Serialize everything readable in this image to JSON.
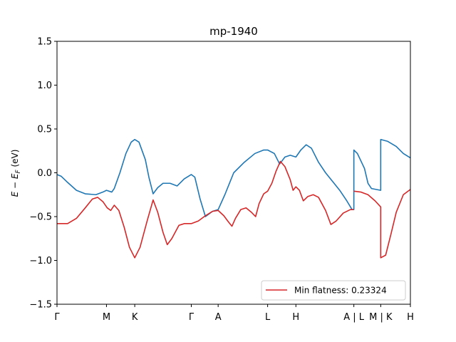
{
  "chart_data": {
    "type": "line",
    "title": "mp-1940",
    "xlabel": "",
    "ylabel": "E − E_F (eV)",
    "ylabel_main": "E − E",
    "ylabel_sub": "F",
    "ylabel_unit": " (eV)",
    "ylim": [
      -1.5,
      1.5
    ],
    "xlim": [
      0,
      10
    ],
    "yticks": [
      {
        "value": -1.5,
        "label": "−1.5"
      },
      {
        "value": -1.0,
        "label": "−1.0"
      },
      {
        "value": -0.5,
        "label": "−0.5"
      },
      {
        "value": 0.0,
        "label": "0.0"
      },
      {
        "value": 0.5,
        "label": "0.5"
      },
      {
        "value": 1.0,
        "label": "1.0"
      },
      {
        "value": 1.5,
        "label": "1.5"
      }
    ],
    "xticks": [
      {
        "value": 0.0,
        "label": "Γ"
      },
      {
        "value": 1.4,
        "label": "M"
      },
      {
        "value": 2.2,
        "label": "K"
      },
      {
        "value": 3.8,
        "label": "Γ"
      },
      {
        "value": 4.56,
        "label": "A"
      },
      {
        "value": 5.96,
        "label": "L"
      },
      {
        "value": 6.76,
        "label": "H"
      },
      {
        "value": 8.4,
        "label": "A | L"
      },
      {
        "value": 9.16,
        "label": "M | K"
      },
      {
        "value": 10.0,
        "label": "H"
      }
    ],
    "grid": false,
    "legend_position": "lower-right",
    "legend_entries": [
      {
        "label": "Min flatness: 0.23324",
        "color": "#d62728"
      }
    ],
    "series": [
      {
        "color": "#1f77b4",
        "segments": [
          [
            [
              0,
              -0.02
            ],
            [
              0.12,
              -0.04
            ],
            [
              0.3,
              -0.11
            ],
            [
              0.55,
              -0.2
            ],
            [
              0.8,
              -0.24
            ],
            [
              1.1,
              -0.25
            ],
            [
              1.3,
              -0.22
            ],
            [
              1.4,
              -0.2
            ],
            [
              1.55,
              -0.22
            ],
            [
              1.62,
              -0.18
            ],
            [
              1.78,
              0.0
            ],
            [
              1.95,
              0.22
            ],
            [
              2.1,
              0.35
            ],
            [
              2.2,
              0.38
            ],
            [
              2.32,
              0.35
            ],
            [
              2.5,
              0.15
            ],
            [
              2.6,
              -0.05
            ],
            [
              2.72,
              -0.24
            ],
            [
              2.85,
              -0.17
            ],
            [
              3.0,
              -0.12
            ],
            [
              3.2,
              -0.12
            ],
            [
              3.4,
              -0.15
            ],
            [
              3.6,
              -0.07
            ],
            [
              3.8,
              -0.02
            ],
            [
              3.9,
              -0.05
            ],
            [
              4.05,
              -0.3
            ],
            [
              4.2,
              -0.5
            ],
            [
              4.4,
              -0.44
            ],
            [
              4.56,
              -0.42
            ],
            [
              4.75,
              -0.25
            ],
            [
              5.0,
              0.0
            ],
            [
              5.3,
              0.12
            ],
            [
              5.6,
              0.22
            ],
            [
              5.85,
              0.26
            ],
            [
              5.96,
              0.26
            ],
            [
              6.15,
              0.22
            ],
            [
              6.3,
              0.1
            ],
            [
              6.45,
              0.18
            ],
            [
              6.6,
              0.2
            ],
            [
              6.76,
              0.18
            ],
            [
              6.9,
              0.26
            ],
            [
              7.05,
              0.32
            ],
            [
              7.2,
              0.28
            ],
            [
              7.4,
              0.12
            ],
            [
              7.6,
              0.0
            ],
            [
              7.8,
              -0.1
            ],
            [
              8.0,
              -0.2
            ],
            [
              8.2,
              -0.32
            ],
            [
              8.35,
              -0.42
            ],
            [
              8.4,
              -0.42
            ],
            [
              8.4,
              0.26
            ],
            [
              8.5,
              0.22
            ],
            [
              8.7,
              0.05
            ],
            [
              8.8,
              -0.12
            ],
            [
              8.9,
              -0.18
            ],
            [
              9.16,
              -0.2
            ],
            [
              9.16,
              0.38
            ],
            [
              9.35,
              0.36
            ],
            [
              9.6,
              0.3
            ],
            [
              9.8,
              0.22
            ],
            [
              10.0,
              0.17
            ]
          ]
        ]
      },
      {
        "color": "#d62728",
        "segments": [
          [
            [
              0,
              -0.58
            ],
            [
              0.3,
              -0.58
            ],
            [
              0.55,
              -0.52
            ],
            [
              0.8,
              -0.4
            ],
            [
              1.0,
              -0.3
            ],
            [
              1.15,
              -0.28
            ],
            [
              1.3,
              -0.33
            ],
            [
              1.42,
              -0.4
            ],
            [
              1.52,
              -0.43
            ],
            [
              1.62,
              -0.37
            ],
            [
              1.75,
              -0.43
            ],
            [
              1.9,
              -0.62
            ],
            [
              2.05,
              -0.85
            ],
            [
              2.2,
              -0.97
            ],
            [
              2.35,
              -0.85
            ],
            [
              2.55,
              -0.55
            ],
            [
              2.72,
              -0.31
            ],
            [
              2.85,
              -0.45
            ],
            [
              3.0,
              -0.68
            ],
            [
              3.12,
              -0.82
            ],
            [
              3.25,
              -0.75
            ],
            [
              3.45,
              -0.6
            ],
            [
              3.6,
              -0.58
            ],
            [
              3.8,
              -0.58
            ],
            [
              4.0,
              -0.55
            ],
            [
              4.2,
              -0.49
            ],
            [
              4.4,
              -0.44
            ],
            [
              4.56,
              -0.43
            ],
            [
              4.72,
              -0.49
            ],
            [
              4.85,
              -0.56
            ],
            [
              4.95,
              -0.61
            ],
            [
              5.05,
              -0.52
            ],
            [
              5.2,
              -0.42
            ],
            [
              5.35,
              -0.4
            ],
            [
              5.5,
              -0.45
            ],
            [
              5.62,
              -0.5
            ],
            [
              5.72,
              -0.35
            ],
            [
              5.85,
              -0.24
            ],
            [
              5.96,
              -0.21
            ],
            [
              6.08,
              -0.12
            ],
            [
              6.2,
              0.02
            ],
            [
              6.32,
              0.13
            ],
            [
              6.45,
              0.07
            ],
            [
              6.6,
              -0.08
            ],
            [
              6.68,
              -0.2
            ],
            [
              6.76,
              -0.16
            ],
            [
              6.86,
              -0.2
            ],
            [
              6.97,
              -0.32
            ],
            [
              7.1,
              -0.27
            ],
            [
              7.25,
              -0.25
            ],
            [
              7.4,
              -0.28
            ],
            [
              7.6,
              -0.43
            ],
            [
              7.75,
              -0.59
            ],
            [
              7.9,
              -0.55
            ],
            [
              8.1,
              -0.46
            ],
            [
              8.3,
              -0.42
            ],
            [
              8.4,
              -0.42
            ]
          ],
          [
            [
              8.4,
              -0.21
            ],
            [
              8.6,
              -0.22
            ],
            [
              8.8,
              -0.25
            ],
            [
              9.0,
              -0.32
            ],
            [
              9.16,
              -0.39
            ],
            [
              9.16,
              -0.97
            ],
            [
              9.3,
              -0.94
            ],
            [
              9.45,
              -0.7
            ],
            [
              9.6,
              -0.45
            ],
            [
              9.8,
              -0.25
            ],
            [
              10.0,
              -0.19
            ]
          ]
        ]
      }
    ]
  }
}
